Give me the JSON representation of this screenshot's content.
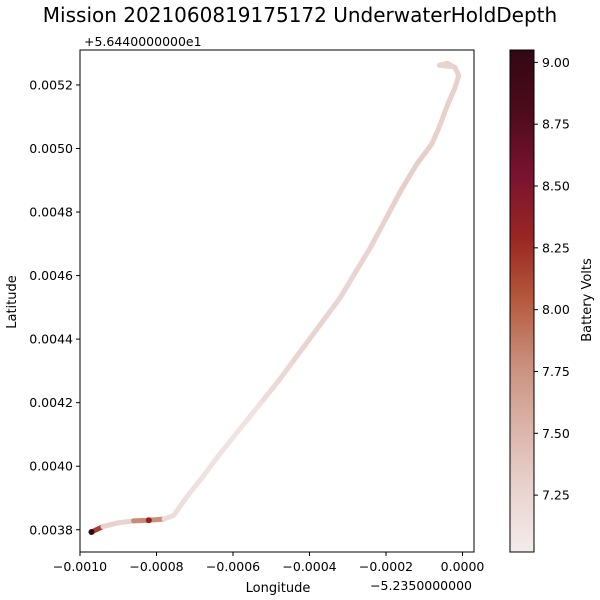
{
  "chart_data": {
    "type": "scatter",
    "title": "Mission 2021060819175172 UnderwaterHoldDepth",
    "xlabel": "Longitude",
    "ylabel": "Latitude",
    "x_offset_text": "−5.2350000000",
    "y_offset_text": "+5.6440000000e1",
    "xlim": [
      -0.001,
      3e-05
    ],
    "ylim": [
      0.00373,
      0.00531
    ],
    "x_ticks": [
      -0.001,
      -0.0008,
      -0.0006,
      -0.0004,
      -0.0002,
      0.0
    ],
    "x_tick_labels": [
      "−0.0010",
      "−0.0008",
      "−0.0006",
      "−0.0004",
      "−0.0002",
      "0.0000"
    ],
    "y_ticks": [
      0.0038,
      0.004,
      0.0042,
      0.0044,
      0.0046,
      0.0048,
      0.005,
      0.0052
    ],
    "y_tick_labels": [
      "0.0038",
      "0.0040",
      "0.0042",
      "0.0044",
      "0.0046",
      "0.0048",
      "0.0050",
      "0.0052"
    ],
    "colorbar": {
      "label": "Battery Volts",
      "range": [
        7.02,
        9.05
      ],
      "ticks": [
        7.25,
        7.5,
        7.75,
        8.0,
        8.25,
        8.5,
        8.75,
        9.0
      ],
      "tick_labels": [
        "7.25",
        "7.50",
        "7.75",
        "8.00",
        "8.25",
        "8.50",
        "8.75",
        "9.00"
      ],
      "colors": [
        "#f3ecec",
        "#e9d3cf",
        "#dbb3a8",
        "#c98f7c",
        "#b65a3d",
        "#9a2622",
        "#7a1330",
        "#4e0b1c",
        "#330714"
      ]
    },
    "track": {
      "points": [
        [
          -0.00097,
          0.003793
        ],
        [
          -0.00094,
          0.00381
        ],
        [
          -0.0009,
          0.003822
        ],
        [
          -0.00086,
          0.003828
        ],
        [
          -0.00082,
          0.00383
        ],
        [
          -0.00078,
          0.003834
        ],
        [
          -0.000755,
          0.003845
        ],
        [
          -0.00072,
          0.003905
        ],
        [
          -0.00068,
          0.003965
        ],
        [
          -0.00064,
          0.00403
        ],
        [
          -0.0006,
          0.00409
        ],
        [
          -0.00056,
          0.00415
        ],
        [
          -0.00052,
          0.00421
        ],
        [
          -0.00048,
          0.00427
        ],
        [
          -0.00044,
          0.004335
        ],
        [
          -0.0004,
          0.0044
        ],
        [
          -0.00036,
          0.004465
        ],
        [
          -0.00032,
          0.00453
        ],
        [
          -0.00028,
          0.00461
        ],
        [
          -0.00024,
          0.00469
        ],
        [
          -0.0002,
          0.00478
        ],
        [
          -0.00016,
          0.00487
        ],
        [
          -0.00012,
          0.00495
        ],
        [
          -8e-05,
          0.005015
        ],
        [
          -6e-05,
          0.00507
        ],
        [
          -4e-05,
          0.005135
        ],
        [
          -2e-05,
          0.00519
        ],
        [
          -1e-05,
          0.00523
        ],
        [
          -2e-05,
          0.005255
        ],
        [
          -4e-05,
          0.005268
        ],
        [
          -6e-05,
          0.005262
        ],
        [
          -3e-05,
          0.005258
        ]
      ],
      "volts": [
        9.02,
        7.3,
        7.28,
        7.25,
        8.35,
        7.2,
        7.18,
        7.15,
        7.12,
        7.1,
        7.1,
        7.1,
        7.15,
        7.22,
        7.25,
        7.27,
        7.27,
        7.25,
        7.25,
        7.27,
        7.3,
        7.3,
        7.32,
        7.3,
        7.3,
        7.3,
        7.3,
        7.28,
        7.28,
        7.3,
        7.25,
        7.3
      ]
    }
  }
}
